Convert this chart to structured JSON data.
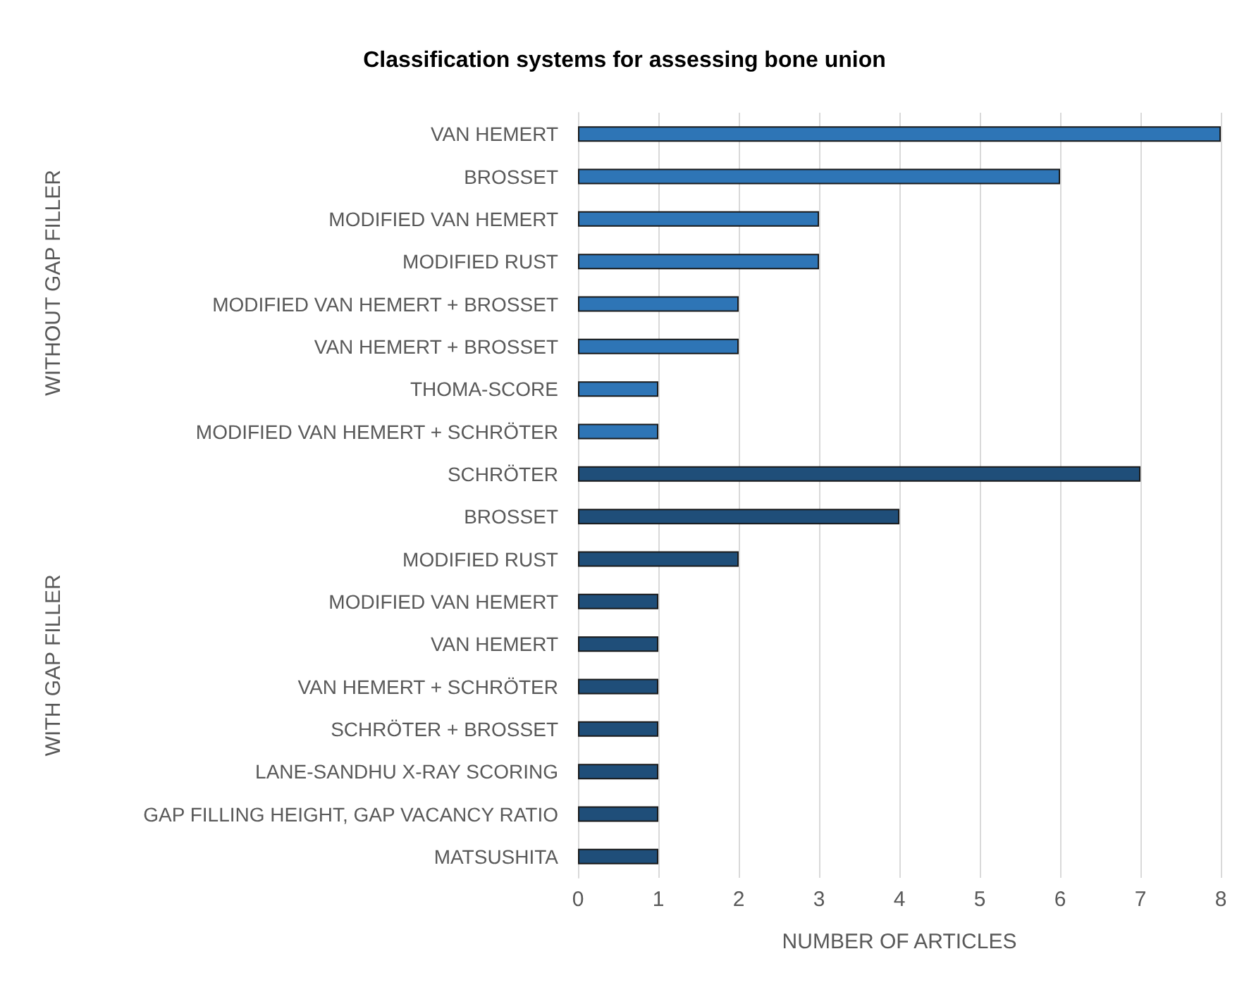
{
  "chart_data": {
    "type": "bar",
    "orientation": "horizontal",
    "title": "Classification systems for assessing bone union",
    "xlabel": "NUMBER OF ARTICLES",
    "categories": [
      "VAN HEMERT",
      "BROSSET",
      "MODIFIED VAN HEMERT",
      "MODIFIED RUST",
      "MODIFIED VAN HEMERT + BROSSET",
      "VAN HEMERT + BROSSET",
      "THOMA-SCORE",
      "MODIFIED VAN HEMERT + SCHRÖTER",
      "SCHRÖTER",
      "BROSSET",
      "MODIFIED RUST",
      "MODIFIED VAN HEMERT",
      "VAN HEMERT",
      "VAN HEMERT + SCHRÖTER",
      "SCHRÖTER + BROSSET",
      "LANE-SANDHU X-RAY SCORING",
      "GAP FILLING HEIGHT, GAP VACANCY RATIO",
      "MATSUSHITA"
    ],
    "values": [
      8,
      6,
      3,
      3,
      2,
      2,
      1,
      1,
      7,
      4,
      2,
      1,
      1,
      1,
      1,
      1,
      1,
      1
    ],
    "colors": [
      "#2e75b6",
      "#2e75b6",
      "#2e75b6",
      "#2e75b6",
      "#2e75b6",
      "#2e75b6",
      "#2e75b6",
      "#2e75b6",
      "#1f4e79",
      "#1f4e79",
      "#1f4e79",
      "#1f4e79",
      "#1f4e79",
      "#1f4e79",
      "#1f4e79",
      "#1f4e79",
      "#1f4e79",
      "#1f4e79"
    ],
    "annotations": [
      "WITHOUT GAP FILLER",
      "WITH GAP FILLER"
    ],
    "xlim": [
      0,
      8
    ],
    "xticks": [
      0,
      1,
      2,
      3,
      4,
      5,
      6,
      7,
      8
    ],
    "grid": "x"
  }
}
